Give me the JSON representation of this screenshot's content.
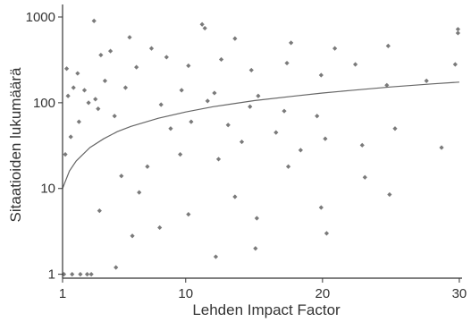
{
  "chart_data": {
    "type": "scatter",
    "xlabel": "Lehden Impact Factor",
    "ylabel": "Sitaatioiden lukumäärä",
    "x_ticks": [
      1,
      10,
      20,
      30
    ],
    "y_ticks": [
      1,
      10,
      100,
      1000
    ],
    "x_tick_labels": [
      "1",
      "10",
      "20",
      "30"
    ],
    "y_tick_labels": [
      "1",
      "10",
      "100",
      "1000"
    ],
    "xlim": [
      1,
      30.2
    ],
    "ylim": [
      0.9,
      1400
    ],
    "yscale": "log",
    "grid": false,
    "legend": "none",
    "point_color": "#7a7a7a",
    "trend_color": "#666666",
    "axis_color": "#333333",
    "trend_line": {
      "type": "power fit",
      "x": [
        1,
        1.5,
        2,
        3,
        4,
        5,
        6,
        8,
        10,
        12,
        15,
        18,
        20,
        22,
        25,
        28,
        30
      ],
      "y": [
        10,
        16,
        21,
        30,
        38,
        46,
        53,
        66,
        78,
        90,
        106,
        120,
        130,
        139,
        153,
        166,
        174
      ]
    },
    "points": [
      [
        3.3,
        900
      ],
      [
        11.2,
        820
      ],
      [
        11.4,
        740
      ],
      [
        29.9,
        720
      ],
      [
        29.9,
        650
      ],
      [
        5.9,
        580
      ],
      [
        13.6,
        560
      ],
      [
        17.7,
        500
      ],
      [
        24.8,
        460
      ],
      [
        20.9,
        430
      ],
      [
        7.5,
        430
      ],
      [
        4.5,
        400
      ],
      [
        3.8,
        360
      ],
      [
        8.6,
        340
      ],
      [
        12.6,
        320
      ],
      [
        17.4,
        290
      ],
      [
        22.4,
        280
      ],
      [
        29.7,
        280
      ],
      [
        10.2,
        270
      ],
      [
        14.8,
        240
      ],
      [
        19.9,
        210
      ],
      [
        27.6,
        180
      ],
      [
        24.7,
        160
      ],
      [
        1.3,
        250
      ],
      [
        2.1,
        220
      ],
      [
        6.4,
        260
      ],
      [
        1.8,
        150
      ],
      [
        2.6,
        140
      ],
      [
        1.4,
        120
      ],
      [
        3.4,
        110
      ],
      [
        9.7,
        140
      ],
      [
        12.1,
        130
      ],
      [
        15.3,
        120
      ],
      [
        11.6,
        105
      ],
      [
        8.2,
        95
      ],
      [
        14.7,
        90
      ],
      [
        17.2,
        80
      ],
      [
        19.6,
        70
      ],
      [
        25.3,
        50
      ],
      [
        13.1,
        55
      ],
      [
        16.6,
        45
      ],
      [
        20.2,
        38
      ],
      [
        22.9,
        32
      ],
      [
        28.7,
        30
      ],
      [
        18.4,
        28
      ],
      [
        10.4,
        60
      ],
      [
        8.9,
        50
      ],
      [
        14.1,
        35
      ],
      [
        12.4,
        22
      ],
      [
        9.6,
        25
      ],
      [
        17.5,
        18
      ],
      [
        23.1,
        13.5
      ],
      [
        24.9,
        8.5
      ],
      [
        13.6,
        8
      ],
      [
        19.9,
        6
      ],
      [
        10.2,
        5
      ],
      [
        15.2,
        4.5
      ],
      [
        20.3,
        3
      ],
      [
        8.1,
        3.5
      ],
      [
        15.1,
        2
      ],
      [
        12.2,
        1.6
      ],
      [
        4.9,
        1.2
      ],
      [
        6.1,
        2.8
      ],
      [
        3.7,
        5.5
      ],
      [
        7.2,
        18
      ],
      [
        6.6,
        9
      ],
      [
        5.3,
        14
      ],
      [
        4.8,
        70
      ],
      [
        3.6,
        85
      ],
      [
        2.9,
        100
      ],
      [
        2.2,
        60
      ],
      [
        1.6,
        40
      ],
      [
        1.2,
        25
      ],
      [
        4.1,
        180
      ],
      [
        5.6,
        150
      ],
      [
        1.1,
        1
      ],
      [
        1.7,
        1
      ],
      [
        2.3,
        1
      ],
      [
        2.8,
        1
      ],
      [
        3.1,
        1
      ]
    ]
  }
}
